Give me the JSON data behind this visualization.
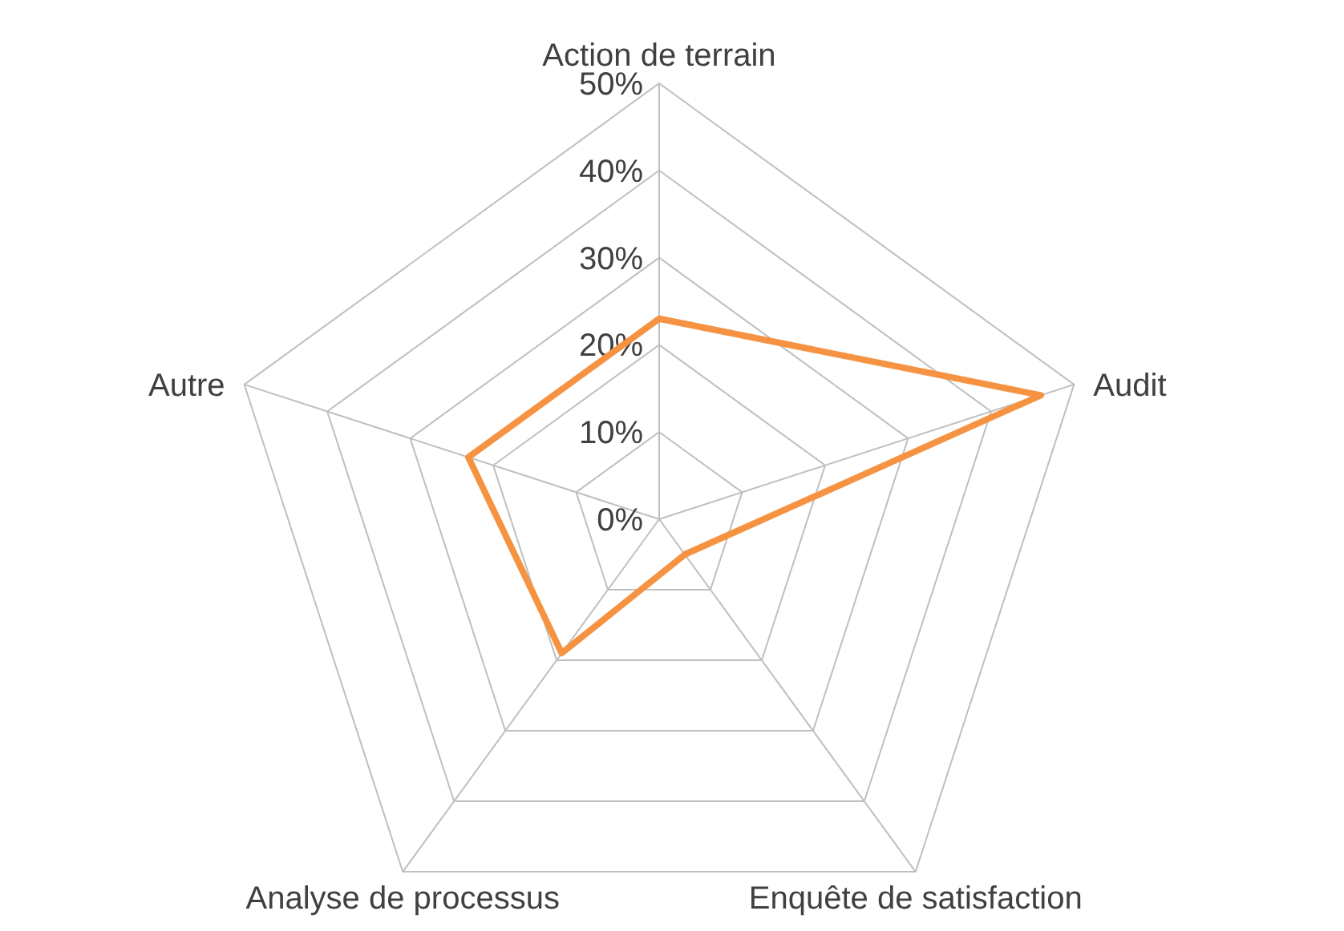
{
  "chart_data": {
    "type": "radar",
    "categories": [
      "Action de terrain",
      "Audit",
      "Enquête de satisfaction",
      "Analyse de processus",
      "Autre"
    ],
    "series": [
      {
        "color": "#f59342",
        "values": [
          23,
          46,
          5,
          19,
          23
        ]
      }
    ],
    "ylim": [
      0,
      50
    ],
    "yticks": [
      {
        "value": 0,
        "label": "0%"
      },
      {
        "value": 10,
        "label": "10%"
      },
      {
        "value": 20,
        "label": "20%"
      },
      {
        "value": 30,
        "label": "30%"
      },
      {
        "value": 40,
        "label": "40%"
      },
      {
        "value": 50,
        "label": "50%"
      }
    ],
    "grid": true,
    "marker": "none",
    "line_style": "solid"
  }
}
